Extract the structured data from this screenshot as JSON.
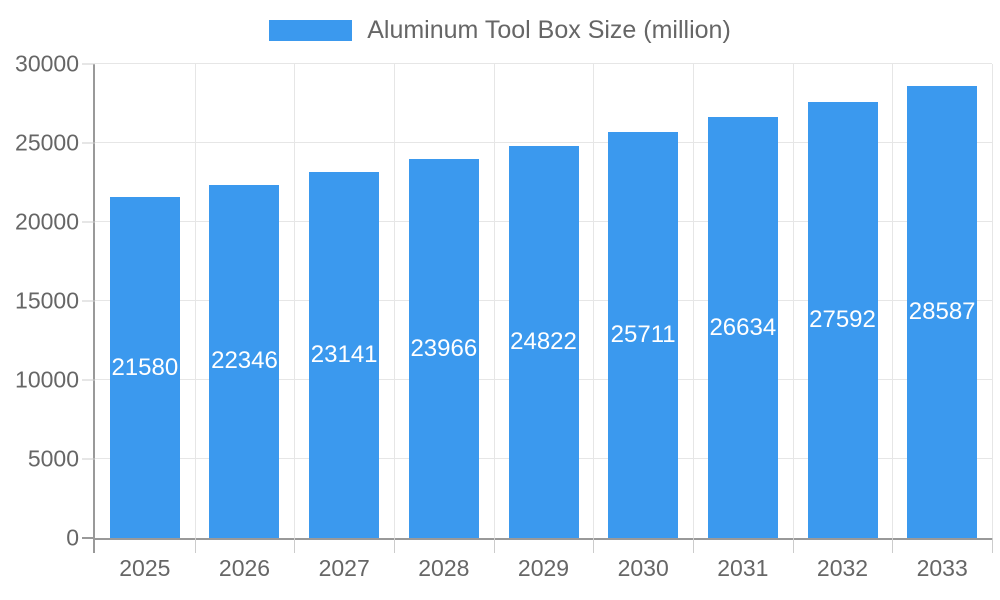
{
  "chart_data": {
    "type": "bar",
    "title": "Aluminum Tool Box Size (million)",
    "categories": [
      "2025",
      "2026",
      "2027",
      "2028",
      "2029",
      "2030",
      "2031",
      "2032",
      "2033"
    ],
    "values": [
      21580,
      22346,
      23141,
      23966,
      24822,
      25711,
      26634,
      27592,
      28587
    ],
    "xlabel": "",
    "ylabel": "",
    "ylim": [
      0,
      30000
    ],
    "ytick_step": 5000,
    "ytick_labels": [
      "0",
      "5000",
      "10000",
      "15000",
      "20000",
      "25000",
      "30000"
    ],
    "grid": true,
    "legend_position": "top-center",
    "bar_labels_shown": true
  },
  "colors": {
    "bar": "#3b99ee",
    "grid": "#e6e6e6",
    "axis": "#999999",
    "tick": "#cccccc",
    "label_text": "#666666",
    "bar_label_text": "#ffffff"
  }
}
